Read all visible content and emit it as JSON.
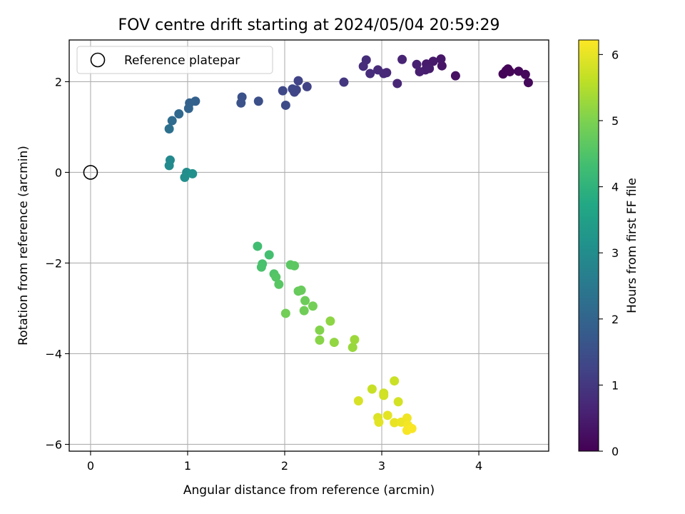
{
  "chart_data": {
    "type": "scatter",
    "title": "FOV centre drift starting at 2024/05/04 20:59:29",
    "xlabel": "Angular distance from reference (arcmin)",
    "ylabel": "Rotation from reference (arcmin)",
    "xlim": [
      -0.22,
      4.72
    ],
    "ylim": [
      -6.15,
      2.92
    ],
    "x_ticks": [
      0,
      1,
      2,
      3,
      4
    ],
    "x_tick_labels": [
      "0",
      "1",
      "2",
      "3",
      "4"
    ],
    "y_ticks": [
      -6,
      -4,
      -2,
      0,
      2
    ],
    "y_tick_labels": [
      "−6",
      "−4",
      "−2",
      "0",
      "2"
    ],
    "grid": true,
    "legend": {
      "placement": "top-left",
      "entries": [
        "Reference platepar"
      ]
    },
    "reference_point": {
      "x": 0,
      "y": 0
    },
    "colorbar": {
      "label": "Hours from first FF file",
      "colormap": "viridis",
      "range": [
        0,
        6.22
      ],
      "ticks": [
        0,
        1,
        2,
        3,
        4,
        5,
        6
      ],
      "tick_labels": [
        "0",
        "1",
        "2",
        "3",
        "4",
        "5",
        "6"
      ]
    },
    "points": [
      {
        "x": 4.25,
        "y": 2.17,
        "c": 0.05
      },
      {
        "x": 4.28,
        "y": 2.24,
        "c": 0.06
      },
      {
        "x": 4.3,
        "y": 2.28,
        "c": 0.07
      },
      {
        "x": 4.32,
        "y": 2.22,
        "c": 0.08
      },
      {
        "x": 4.41,
        "y": 2.23,
        "c": 0.1
      },
      {
        "x": 4.48,
        "y": 2.16,
        "c": 0.12
      },
      {
        "x": 4.51,
        "y": 1.98,
        "c": 0.14
      },
      {
        "x": 3.76,
        "y": 2.13,
        "c": 0.25
      },
      {
        "x": 3.62,
        "y": 2.35,
        "c": 0.35
      },
      {
        "x": 3.61,
        "y": 2.5,
        "c": 0.38
      },
      {
        "x": 3.53,
        "y": 2.45,
        "c": 0.42
      },
      {
        "x": 3.46,
        "y": 2.39,
        "c": 0.45
      },
      {
        "x": 3.49,
        "y": 2.29,
        "c": 0.48
      },
      {
        "x": 3.45,
        "y": 2.26,
        "c": 0.5
      },
      {
        "x": 3.39,
        "y": 2.22,
        "c": 0.52
      },
      {
        "x": 3.36,
        "y": 2.38,
        "c": 0.55
      },
      {
        "x": 3.21,
        "y": 2.49,
        "c": 0.62
      },
      {
        "x": 3.16,
        "y": 1.96,
        "c": 0.66
      },
      {
        "x": 3.05,
        "y": 2.2,
        "c": 0.7
      },
      {
        "x": 3.02,
        "y": 2.18,
        "c": 0.72
      },
      {
        "x": 2.96,
        "y": 2.26,
        "c": 0.75
      },
      {
        "x": 2.88,
        "y": 2.18,
        "c": 0.78
      },
      {
        "x": 2.84,
        "y": 2.48,
        "c": 0.8
      },
      {
        "x": 2.81,
        "y": 2.34,
        "c": 0.82
      },
      {
        "x": 2.61,
        "y": 1.99,
        "c": 1.0
      },
      {
        "x": 2.23,
        "y": 1.89,
        "c": 1.2
      },
      {
        "x": 2.14,
        "y": 2.02,
        "c": 1.25
      },
      {
        "x": 2.12,
        "y": 1.82,
        "c": 1.28
      },
      {
        "x": 2.1,
        "y": 1.77,
        "c": 1.3
      },
      {
        "x": 2.08,
        "y": 1.84,
        "c": 1.32
      },
      {
        "x": 1.98,
        "y": 1.8,
        "c": 1.36
      },
      {
        "x": 2.01,
        "y": 1.48,
        "c": 1.4
      },
      {
        "x": 1.73,
        "y": 1.57,
        "c": 1.5
      },
      {
        "x": 1.56,
        "y": 1.66,
        "c": 1.55
      },
      {
        "x": 1.55,
        "y": 1.53,
        "c": 1.58
      },
      {
        "x": 1.08,
        "y": 1.57,
        "c": 1.9
      },
      {
        "x": 1.02,
        "y": 1.53,
        "c": 1.95
      },
      {
        "x": 1.01,
        "y": 1.41,
        "c": 2.0
      },
      {
        "x": 0.91,
        "y": 1.29,
        "c": 2.1
      },
      {
        "x": 0.84,
        "y": 1.14,
        "c": 2.2
      },
      {
        "x": 0.81,
        "y": 0.96,
        "c": 2.3
      },
      {
        "x": 0.82,
        "y": 0.27,
        "c": 2.9
      },
      {
        "x": 0.81,
        "y": 0.15,
        "c": 2.95
      },
      {
        "x": 0.99,
        "y": 0.0,
        "c": 3.0
      },
      {
        "x": 0.97,
        "y": -0.11,
        "c": 3.05
      },
      {
        "x": 1.05,
        "y": -0.03,
        "c": 3.1
      },
      {
        "x": 1.72,
        "y": -1.63,
        "c": 4.3
      },
      {
        "x": 1.84,
        "y": -1.82,
        "c": 4.35
      },
      {
        "x": 1.77,
        "y": -2.02,
        "c": 4.4
      },
      {
        "x": 1.76,
        "y": -2.09,
        "c": 4.42
      },
      {
        "x": 1.89,
        "y": -2.24,
        "c": 4.5
      },
      {
        "x": 1.91,
        "y": -2.31,
        "c": 4.55
      },
      {
        "x": 1.94,
        "y": -2.47,
        "c": 4.6
      },
      {
        "x": 2.06,
        "y": -2.04,
        "c": 4.62
      },
      {
        "x": 2.1,
        "y": -2.06,
        "c": 4.64
      },
      {
        "x": 2.14,
        "y": -2.62,
        "c": 4.75
      },
      {
        "x": 2.17,
        "y": -2.6,
        "c": 4.78
      },
      {
        "x": 2.21,
        "y": -2.83,
        "c": 4.82
      },
      {
        "x": 2.2,
        "y": -3.05,
        "c": 4.85
      },
      {
        "x": 2.01,
        "y": -3.11,
        "c": 4.88
      },
      {
        "x": 2.29,
        "y": -2.95,
        "c": 4.9
      },
      {
        "x": 2.36,
        "y": -3.48,
        "c": 5.05
      },
      {
        "x": 2.36,
        "y": -3.7,
        "c": 5.1
      },
      {
        "x": 2.47,
        "y": -3.28,
        "c": 5.15
      },
      {
        "x": 2.51,
        "y": -3.75,
        "c": 5.2
      },
      {
        "x": 2.7,
        "y": -3.86,
        "c": 5.25
      },
      {
        "x": 2.72,
        "y": -3.69,
        "c": 5.3
      },
      {
        "x": 2.9,
        "y": -4.78,
        "c": 5.7
      },
      {
        "x": 3.13,
        "y": -4.6,
        "c": 5.72
      },
      {
        "x": 3.02,
        "y": -4.87,
        "c": 5.75
      },
      {
        "x": 3.02,
        "y": -4.92,
        "c": 5.78
      },
      {
        "x": 3.17,
        "y": -5.06,
        "c": 5.82
      },
      {
        "x": 2.76,
        "y": -5.04,
        "c": 5.85
      },
      {
        "x": 2.96,
        "y": -5.41,
        "c": 5.9
      },
      {
        "x": 2.97,
        "y": -5.51,
        "c": 5.95
      },
      {
        "x": 3.06,
        "y": -5.36,
        "c": 5.98
      },
      {
        "x": 3.13,
        "y": -5.52,
        "c": 6.02
      },
      {
        "x": 3.2,
        "y": -5.51,
        "c": 6.05
      },
      {
        "x": 3.26,
        "y": -5.42,
        "c": 6.08
      },
      {
        "x": 3.27,
        "y": -5.58,
        "c": 6.12
      },
      {
        "x": 3.26,
        "y": -5.69,
        "c": 6.15
      },
      {
        "x": 3.31,
        "y": -5.65,
        "c": 6.18
      }
    ]
  },
  "colors": {
    "axes": "#000000",
    "grid": "#b0b0b0",
    "viridis": [
      "#440154",
      "#482475",
      "#414487",
      "#355f8d",
      "#2a788e",
      "#21918c",
      "#22a884",
      "#44bf70",
      "#7ad151",
      "#bddf26",
      "#fde725"
    ]
  }
}
